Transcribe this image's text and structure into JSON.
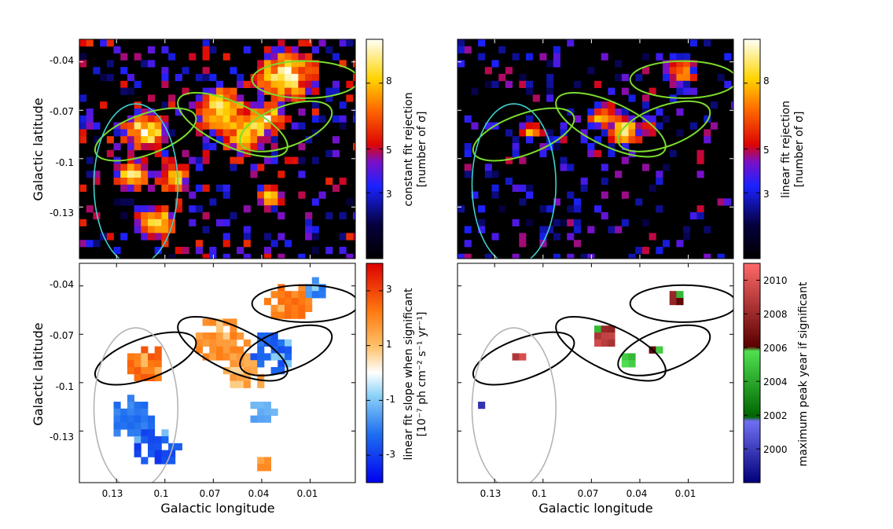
{
  "chart_data": [
    {
      "type": "heatmap",
      "panel": "top-left",
      "background": "black",
      "colormap": "gnuplot-hot",
      "ylabel": "Galactic latitude",
      "xlabel": "",
      "ytick_labels": [
        "-0.04",
        "-0.07",
        "-0.1",
        "-0.13"
      ],
      "yticks": [
        -0.04,
        -0.07,
        -0.1,
        -0.13
      ],
      "xticks": [
        0.13,
        0.1,
        0.07,
        0.04,
        0.01
      ],
      "xlim": [
        0.153,
        -0.018
      ],
      "ylim": [
        -0.162,
        -0.026
      ],
      "colorbar": {
        "labels": [
          "constant fit rejection",
          "[number of σ]"
        ],
        "tick_labels": [
          "8",
          "5",
          "3"
        ],
        "ticks": [
          8,
          5,
          3
        ],
        "range": [
          0,
          10
        ]
      },
      "ellipse_color": "#7cdc2e",
      "large_ellipse_color": "#40d0d0",
      "blobs": [
        {
          "l": 0.112,
          "b": -0.083,
          "level": 10,
          "spread": 0.7
        },
        {
          "l": 0.12,
          "b": -0.11,
          "level": 9.5,
          "spread": 0.5
        },
        {
          "l": 0.106,
          "b": -0.14,
          "level": 10,
          "spread": 0.6
        },
        {
          "l": 0.095,
          "b": -0.112,
          "level": 9,
          "spread": 0.5
        },
        {
          "l": 0.065,
          "b": -0.07,
          "level": 10,
          "spread": 0.8
        },
        {
          "l": 0.05,
          "b": -0.082,
          "level": 10,
          "spread": 0.8
        },
        {
          "l": 0.037,
          "b": -0.075,
          "level": 9.5,
          "spread": 0.6
        },
        {
          "l": 0.025,
          "b": -0.048,
          "level": 10,
          "spread": 0.9
        },
        {
          "l": 0.035,
          "b": -0.124,
          "level": 8,
          "spread": 0.4
        }
      ],
      "noise_level": 4.5,
      "noise_density": 0.22
    },
    {
      "type": "heatmap",
      "panel": "top-right",
      "background": "black",
      "colormap": "gnuplot-hot",
      "xticks": [
        0.13,
        0.1,
        0.07,
        0.04,
        0.01
      ],
      "xlim": [
        0.153,
        -0.018
      ],
      "ylim": [
        -0.162,
        -0.026
      ],
      "colorbar": {
        "labels": [
          "linear fit rejection",
          "[number of σ]"
        ],
        "tick_labels": [
          "8",
          "5",
          "3"
        ],
        "ticks": [
          8,
          5,
          3
        ],
        "range": [
          0,
          10
        ]
      },
      "ellipse_color": "#7cdc2e",
      "large_ellipse_color": "#40d0d0",
      "blobs": [
        {
          "l": 0.062,
          "b": -0.074,
          "level": 8.5,
          "spread": 0.5
        },
        {
          "l": 0.05,
          "b": -0.083,
          "level": 9.5,
          "spread": 0.5
        },
        {
          "l": 0.015,
          "b": -0.046,
          "level": 8,
          "spread": 0.5
        },
        {
          "l": 0.108,
          "b": -0.082,
          "level": 8,
          "spread": 0.35
        },
        {
          "l": 0.033,
          "b": -0.08,
          "level": 7,
          "spread": 0.3
        }
      ],
      "noise_level": 3.6,
      "noise_density": 0.17
    },
    {
      "type": "heatmap",
      "panel": "bottom-left",
      "background": "white",
      "colormap": "blue-white-red",
      "ylabel": "Galactic latitude",
      "xlabel": "Galactic longitude",
      "ytick_labels": [
        "-0.04",
        "-0.07",
        "-0.1",
        "-0.13"
      ],
      "xtick_labels": [
        "0.13",
        "0.1",
        "0.07",
        "0.04",
        "0.01"
      ],
      "yticks": [
        -0.04,
        -0.07,
        -0.1,
        -0.13
      ],
      "xticks": [
        0.13,
        0.1,
        0.07,
        0.04,
        0.01
      ],
      "xlim": [
        0.153,
        -0.018
      ],
      "ylim": [
        -0.162,
        -0.026
      ],
      "colorbar": {
        "labels": [
          "linear fit slope when significant",
          "[10⁻⁷ ph cm⁻² s⁻¹ yr⁻¹]"
        ],
        "tick_labels": [
          "3",
          "1",
          "-1",
          "-3"
        ],
        "ticks": [
          3,
          1,
          -1,
          -3
        ],
        "range": [
          -4,
          4
        ]
      },
      "ellipse_color": "#000000",
      "large_ellipse_color": "#b4b4b4",
      "regions": [
        {
          "l": 0.112,
          "b": -0.088,
          "value": 2.8,
          "spread": 0.8
        },
        {
          "l": 0.12,
          "b": -0.122,
          "value": -2.5,
          "spread": 0.9
        },
        {
          "l": 0.106,
          "b": -0.14,
          "value": -3.2,
          "spread": 0.9
        },
        {
          "l": 0.065,
          "b": -0.073,
          "value": 2.2,
          "spread": 1.0
        },
        {
          "l": 0.05,
          "b": -0.092,
          "value": 1.8,
          "spread": 0.9
        },
        {
          "l": 0.035,
          "b": -0.082,
          "value": -2.8,
          "spread": 0.9
        },
        {
          "l": 0.022,
          "b": -0.05,
          "value": 2.6,
          "spread": 0.9
        },
        {
          "l": 0.008,
          "b": -0.042,
          "value": -2.2,
          "spread": 0.5
        },
        {
          "l": 0.04,
          "b": -0.118,
          "value": -1.6,
          "spread": 0.5
        },
        {
          "l": 0.038,
          "b": -0.151,
          "value": 2.0,
          "spread": 0.3
        }
      ]
    },
    {
      "type": "heatmap",
      "panel": "bottom-right",
      "background": "white",
      "colormap": "year-discrete",
      "xlabel": "Galactic longitude",
      "xtick_labels": [
        "0.13",
        "0.1",
        "0.07",
        "0.04",
        "0.01"
      ],
      "xticks": [
        0.13,
        0.1,
        0.07,
        0.04,
        0.01
      ],
      "xlim": [
        0.153,
        -0.018
      ],
      "ylim": [
        -0.162,
        -0.026
      ],
      "colorbar": {
        "labels": [
          "maximum peak year if significant"
        ],
        "tick_labels": [
          "2010",
          "2008",
          "2006",
          "2004",
          "2002",
          "2000"
        ],
        "ticks": [
          2010,
          2008,
          2006,
          2004,
          2002,
          2000
        ],
        "range": [
          1998,
          2011
        ]
      },
      "ellipse_color": "#000000",
      "large_ellipse_color": "#b4b4b4",
      "regions": [
        {
          "l": 0.115,
          "b": -0.084,
          "value": 2009.5,
          "spread": 0.35
        },
        {
          "l": 0.062,
          "b": -0.07,
          "value": 2008.6,
          "spread": 0.55
        },
        {
          "l": 0.048,
          "b": -0.086,
          "value": 2005.2,
          "spread": 0.35
        },
        {
          "l": 0.032,
          "b": -0.08,
          "value": 2005.4,
          "spread": 0.3
        },
        {
          "l": 0.018,
          "b": -0.048,
          "value": 2007.5,
          "spread": 0.3
        },
        {
          "l": 0.137,
          "b": -0.114,
          "value": 2001.0,
          "spread": 0.15
        }
      ]
    }
  ],
  "ellipses": [
    {
      "l": 0.112,
      "b": -0.085,
      "rl": 0.033,
      "rb": 0.0125,
      "angle_deg": -20,
      "kind": "small"
    },
    {
      "l": 0.058,
      "b": -0.079,
      "rl": 0.037,
      "rb": 0.0135,
      "angle_deg": 25,
      "kind": "small"
    },
    {
      "l": 0.025,
      "b": -0.08,
      "rl": 0.03,
      "rb": 0.0125,
      "angle_deg": -20,
      "kind": "small"
    },
    {
      "l": 0.013,
      "b": -0.051,
      "rl": 0.033,
      "rb": 0.0115,
      "angle_deg": 0,
      "kind": "small"
    },
    {
      "l": 0.118,
      "b": -0.116,
      "rl": 0.026,
      "rb": 0.05,
      "angle_deg": 0,
      "kind": "large"
    }
  ]
}
